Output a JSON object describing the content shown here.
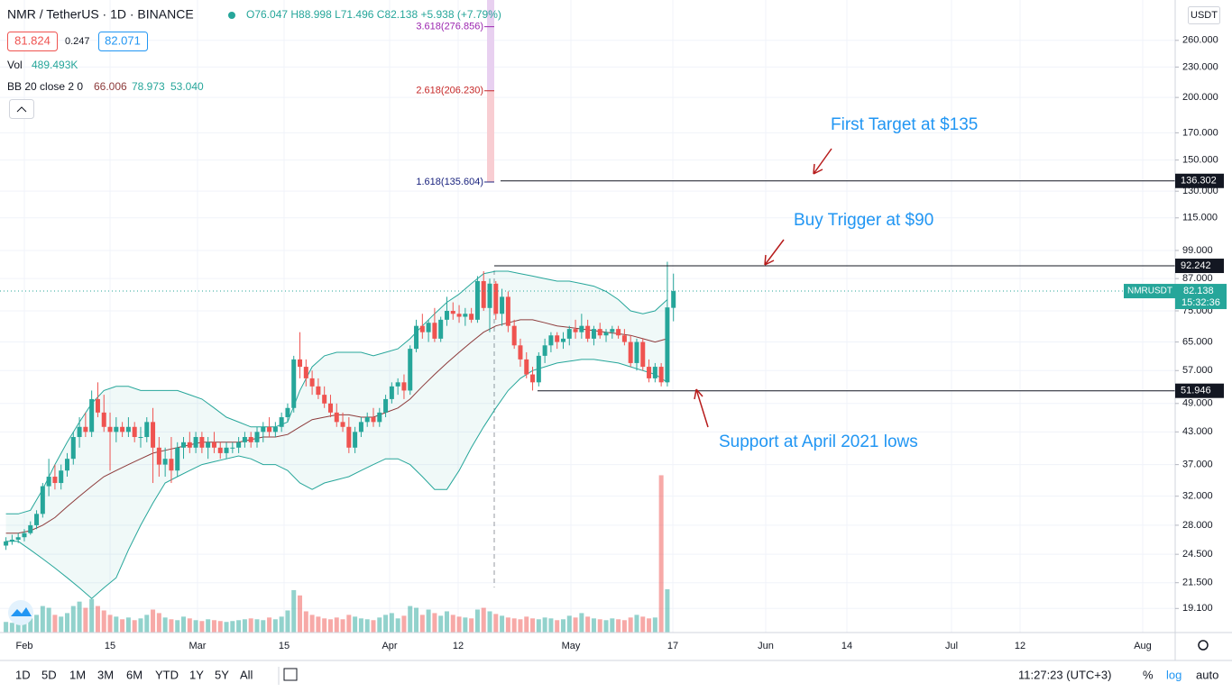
{
  "header": {
    "symbol": "NMR / TetherUS · 1D · BINANCE",
    "ohlc": "O76.047 H88.998 L71.496 C82.138 +5.938 (+7.79%)",
    "bid": "81.824",
    "spread": "0.247",
    "ask": "82.071",
    "vol_label": "Vol",
    "vol_value": "489.493K",
    "bb_label": "BB 20 close 2 0",
    "bb_values": [
      "66.006",
      "78.973",
      "53.040"
    ],
    "currency": "USDT"
  },
  "chart_data": {
    "type": "candlestick",
    "log": true,
    "grid": true,
    "up_color": "#26a69a",
    "down_color": "#ef5350",
    "band_color": "#26a69a",
    "basis_color": "#8d3b3b",
    "ylim": [
      17.1,
      313
    ],
    "yticks": [
      {
        "value": 260,
        "label": "260.000"
      },
      {
        "value": 230,
        "label": "230.000"
      },
      {
        "value": 200,
        "label": "200.000"
      },
      {
        "value": 170,
        "label": "170.000"
      },
      {
        "value": 150,
        "label": "150.000"
      },
      {
        "value": 130,
        "label": "130.000"
      },
      {
        "value": 115,
        "label": "115.000"
      },
      {
        "value": 99,
        "label": "99.000"
      },
      {
        "value": 87,
        "label": "87.000"
      },
      {
        "value": 75,
        "label": "75.000"
      },
      {
        "value": 65,
        "label": "65.000"
      },
      {
        "value": 57,
        "label": "57.000"
      },
      {
        "value": 49,
        "label": "49.000"
      },
      {
        "value": 43,
        "label": "43.000"
      },
      {
        "value": 37,
        "label": "37.000"
      },
      {
        "value": 32,
        "label": "32.000"
      },
      {
        "value": 28,
        "label": "28.000"
      },
      {
        "value": 24.5,
        "label": "24.500"
      },
      {
        "value": 21.5,
        "label": "21.500"
      },
      {
        "value": 19.1,
        "label": "19.100"
      }
    ],
    "xticks": [
      "Feb",
      "15",
      "Mar",
      "15",
      "Apr",
      "12",
      "May",
      "17",
      "Jun",
      "14",
      "Jul",
      "12",
      "Aug"
    ],
    "candles": [
      [
        25.5,
        26.5,
        25,
        26
      ],
      [
        26,
        26.8,
        25.6,
        26.2
      ],
      [
        26.2,
        27,
        25.8,
        26.5
      ],
      [
        26.5,
        27.5,
        26,
        27
      ],
      [
        27,
        28.5,
        26.8,
        28
      ],
      [
        28,
        30,
        27.5,
        29.5
      ],
      [
        29.5,
        34,
        29,
        33.5
      ],
      [
        33.5,
        38,
        32,
        35
      ],
      [
        35,
        37,
        33,
        34
      ],
      [
        34,
        37,
        33,
        36
      ],
      [
        36,
        39,
        35,
        38
      ],
      [
        38,
        43,
        37,
        42
      ],
      [
        42,
        46,
        40,
        44
      ],
      [
        44,
        47,
        42,
        43
      ],
      [
        43,
        52,
        42,
        50
      ],
      [
        50,
        54,
        46,
        47
      ],
      [
        47,
        51,
        43,
        44
      ],
      [
        44,
        47,
        36,
        43
      ],
      [
        43,
        46,
        41,
        44
      ],
      [
        44,
        45,
        42,
        43
      ],
      [
        43,
        46,
        42,
        44
      ],
      [
        44,
        45,
        41,
        42
      ],
      [
        42,
        44,
        40,
        42
      ],
      [
        42,
        46,
        41,
        45
      ],
      [
        45,
        48,
        34,
        40
      ],
      [
        40,
        42,
        35,
        37
      ],
      [
        37,
        40,
        35,
        38
      ],
      [
        38,
        42,
        34,
        36
      ],
      [
        36,
        41,
        35,
        40
      ],
      [
        40,
        42,
        38,
        41
      ],
      [
        41,
        43,
        39,
        40
      ],
      [
        40,
        43,
        39,
        42
      ],
      [
        42,
        43,
        39,
        40
      ],
      [
        40,
        42,
        38,
        41
      ],
      [
        41,
        43,
        39,
        40
      ],
      [
        40,
        41,
        38,
        39
      ],
      [
        39,
        41,
        38,
        40
      ],
      [
        40,
        41,
        39,
        40
      ],
      [
        40,
        42,
        39,
        41
      ],
      [
        41,
        43,
        40,
        42
      ],
      [
        42,
        43,
        40,
        41
      ],
      [
        41,
        44,
        40,
        43
      ],
      [
        43,
        45,
        41,
        44
      ],
      [
        44,
        46,
        42,
        43
      ],
      [
        43,
        45,
        42,
        44
      ],
      [
        44,
        47,
        43,
        46
      ],
      [
        46,
        49,
        45,
        48
      ],
      [
        48,
        61,
        47,
        60
      ],
      [
        60,
        68,
        55,
        58
      ],
      [
        58,
        60,
        53,
        55
      ],
      [
        55,
        57,
        51,
        53
      ],
      [
        53,
        55,
        50,
        51
      ],
      [
        51,
        53,
        48,
        49
      ],
      [
        49,
        51,
        46,
        47
      ],
      [
        47,
        49,
        44,
        45
      ],
      [
        45,
        47,
        43,
        44
      ],
      [
        44,
        46,
        39,
        40
      ],
      [
        40,
        44,
        39,
        43
      ],
      [
        43,
        46,
        42,
        45
      ],
      [
        45,
        47,
        44,
        46
      ],
      [
        46,
        48,
        44,
        45
      ],
      [
        45,
        48,
        44,
        47
      ],
      [
        47,
        51,
        46,
        50
      ],
      [
        50,
        54,
        49,
        53
      ],
      [
        53,
        55,
        51,
        54
      ],
      [
        54,
        56,
        50,
        52
      ],
      [
        52,
        64,
        51,
        63
      ],
      [
        63,
        72,
        62,
        70
      ],
      [
        70,
        74,
        66,
        68
      ],
      [
        68,
        72,
        65,
        71
      ],
      [
        71,
        76,
        65,
        66
      ],
      [
        66,
        73,
        65,
        72
      ],
      [
        72,
        80,
        70,
        75
      ],
      [
        75,
        78,
        72,
        74
      ],
      [
        74,
        77,
        71,
        73
      ],
      [
        73,
        76,
        70,
        74
      ],
      [
        74,
        76,
        71,
        72
      ],
      [
        72,
        88,
        71,
        86
      ],
      [
        86,
        90,
        75,
        76
      ],
      [
        76,
        87,
        68,
        85
      ],
      [
        85,
        86,
        72,
        74
      ],
      [
        74,
        83,
        70,
        80
      ],
      [
        80,
        82,
        68,
        70
      ],
      [
        70,
        72,
        63,
        64
      ],
      [
        64,
        66,
        58,
        60
      ],
      [
        60,
        62,
        55,
        56
      ],
      [
        56,
        58,
        52,
        54
      ],
      [
        54,
        62,
        53,
        61
      ],
      [
        61,
        66,
        59,
        64
      ],
      [
        64,
        68,
        62,
        67
      ],
      [
        67,
        68,
        63,
        65
      ],
      [
        65,
        68,
        63,
        66
      ],
      [
        66,
        70,
        64,
        69
      ],
      [
        69,
        72,
        66,
        68
      ],
      [
        68,
        74,
        66,
        70
      ],
      [
        70,
        72,
        65,
        66
      ],
      [
        66,
        70,
        64,
        69
      ],
      [
        69,
        71,
        66,
        67
      ],
      [
        67,
        69,
        65,
        68
      ],
      [
        68,
        70,
        66,
        69
      ],
      [
        69,
        70,
        66,
        67
      ],
      [
        67,
        69,
        64,
        65
      ],
      [
        65,
        67,
        58,
        59
      ],
      [
        59,
        66,
        57,
        65
      ],
      [
        65,
        66,
        57,
        58
      ],
      [
        58,
        60,
        54,
        55
      ],
      [
        55,
        59,
        54,
        58
      ],
      [
        58,
        59,
        53,
        54
      ],
      [
        54,
        94,
        53,
        76.2
      ],
      [
        76.047,
        88.998,
        71.496,
        82.138
      ]
    ],
    "volume": [
      120,
      110,
      130,
      150,
      160,
      200,
      300,
      280,
      200,
      180,
      220,
      300,
      350,
      280,
      380,
      300,
      250,
      200,
      180,
      150,
      170,
      140,
      160,
      200,
      260,
      220,
      170,
      150,
      140,
      180,
      160,
      140,
      130,
      150,
      140,
      130,
      120,
      130,
      140,
      150,
      160,
      150,
      140,
      170,
      150,
      180,
      250,
      480,
      420,
      240,
      200,
      180,
      160,
      150,
      170,
      150,
      200,
      180,
      160,
      150,
      140,
      170,
      200,
      220,
      160,
      190,
      300,
      280,
      200,
      260,
      220,
      190,
      240,
      200,
      180,
      170,
      160,
      260,
      280,
      240,
      210,
      190,
      170,
      160,
      150,
      180,
      160,
      150,
      170,
      160,
      140,
      150,
      190,
      170,
      220,
      180,
      160,
      150,
      140,
      160,
      150,
      140,
      170,
      200,
      180,
      160,
      170,
      1780,
      489.493
    ],
    "bb_upper": [
      29.5,
      29.5,
      30,
      33,
      37,
      41,
      45,
      49,
      52,
      53,
      53,
      52,
      52,
      52,
      52,
      51,
      50,
      48,
      46,
      45,
      44,
      44,
      44,
      45,
      52,
      58,
      61,
      62,
      62,
      62,
      61,
      62,
      63,
      66,
      70,
      74,
      78,
      81,
      85,
      89,
      90,
      90,
      89,
      88,
      87,
      86,
      86,
      85,
      84,
      82,
      79,
      75,
      74,
      75,
      79
    ],
    "bb_basis": [
      27,
      27,
      27.3,
      28,
      29,
      30.5,
      32,
      33.5,
      35,
      36,
      37,
      38,
      39,
      39.5,
      40,
      40.5,
      41,
      41,
      41,
      41,
      41.5,
      42,
      42,
      42.5,
      44,
      45.5,
      46,
      46.5,
      46.5,
      46,
      46,
      47,
      48,
      50,
      53,
      56,
      59,
      62,
      65,
      68,
      70,
      71,
      72,
      72,
      71,
      70,
      69.5,
      69,
      68.5,
      68,
      67.5,
      67,
      66,
      65,
      66
    ],
    "bb_lower": [
      26,
      26,
      25,
      24,
      23,
      22,
      21,
      20,
      21,
      22,
      25,
      28,
      31,
      34,
      35,
      36,
      37,
      37.5,
      38,
      38.5,
      38,
      37,
      37,
      36,
      34,
      33,
      34,
      34.5,
      35,
      36,
      37,
      38,
      38,
      37,
      35,
      33,
      33,
      36,
      40,
      44,
      48,
      52,
      55,
      57,
      58,
      59,
      59.5,
      60,
      60,
      59.5,
      59,
      58,
      57,
      56,
      54
    ],
    "fib": [
      {
        "label": "3.618(276.856)",
        "value": 276.856,
        "color": "#9c27b0"
      },
      {
        "label": "2.618(206.230)",
        "value": 206.23,
        "color": "#c62828"
      },
      {
        "label": "1.618(135.604)",
        "value": 135.604,
        "color": "#1a237e"
      }
    ],
    "levels": [
      136.302,
      92.242,
      51.946
    ],
    "last_price": 82.138,
    "symbol_tag": "NMRUSDT",
    "countdown": "15:32:36",
    "annotations": [
      "First Target at $135",
      "Buy Trigger at $90",
      "Support at April 2021 lows"
    ]
  },
  "toolbar": {
    "ranges": [
      "1D",
      "5D",
      "1M",
      "3M",
      "6M",
      "YTD",
      "1Y",
      "5Y",
      "All"
    ],
    "clock": "11:27:23 (UTC+3)",
    "percent": "%",
    "log": "log",
    "auto": "auto"
  }
}
